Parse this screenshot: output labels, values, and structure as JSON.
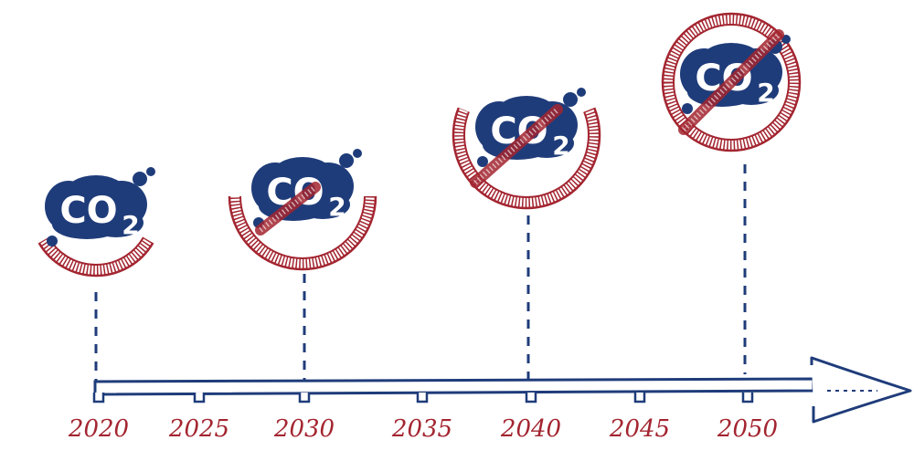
{
  "icons": [
    {
      "main": "CO",
      "sub": "2"
    },
    {
      "main": "CO",
      "sub": "2"
    },
    {
      "main": "CO",
      "sub": "2"
    },
    {
      "main": "CO",
      "sub": "2"
    }
  ],
  "timeline": {
    "labels": [
      "2020",
      "2025",
      "2030",
      "2035",
      "2040",
      "2045",
      "2050"
    ]
  }
}
